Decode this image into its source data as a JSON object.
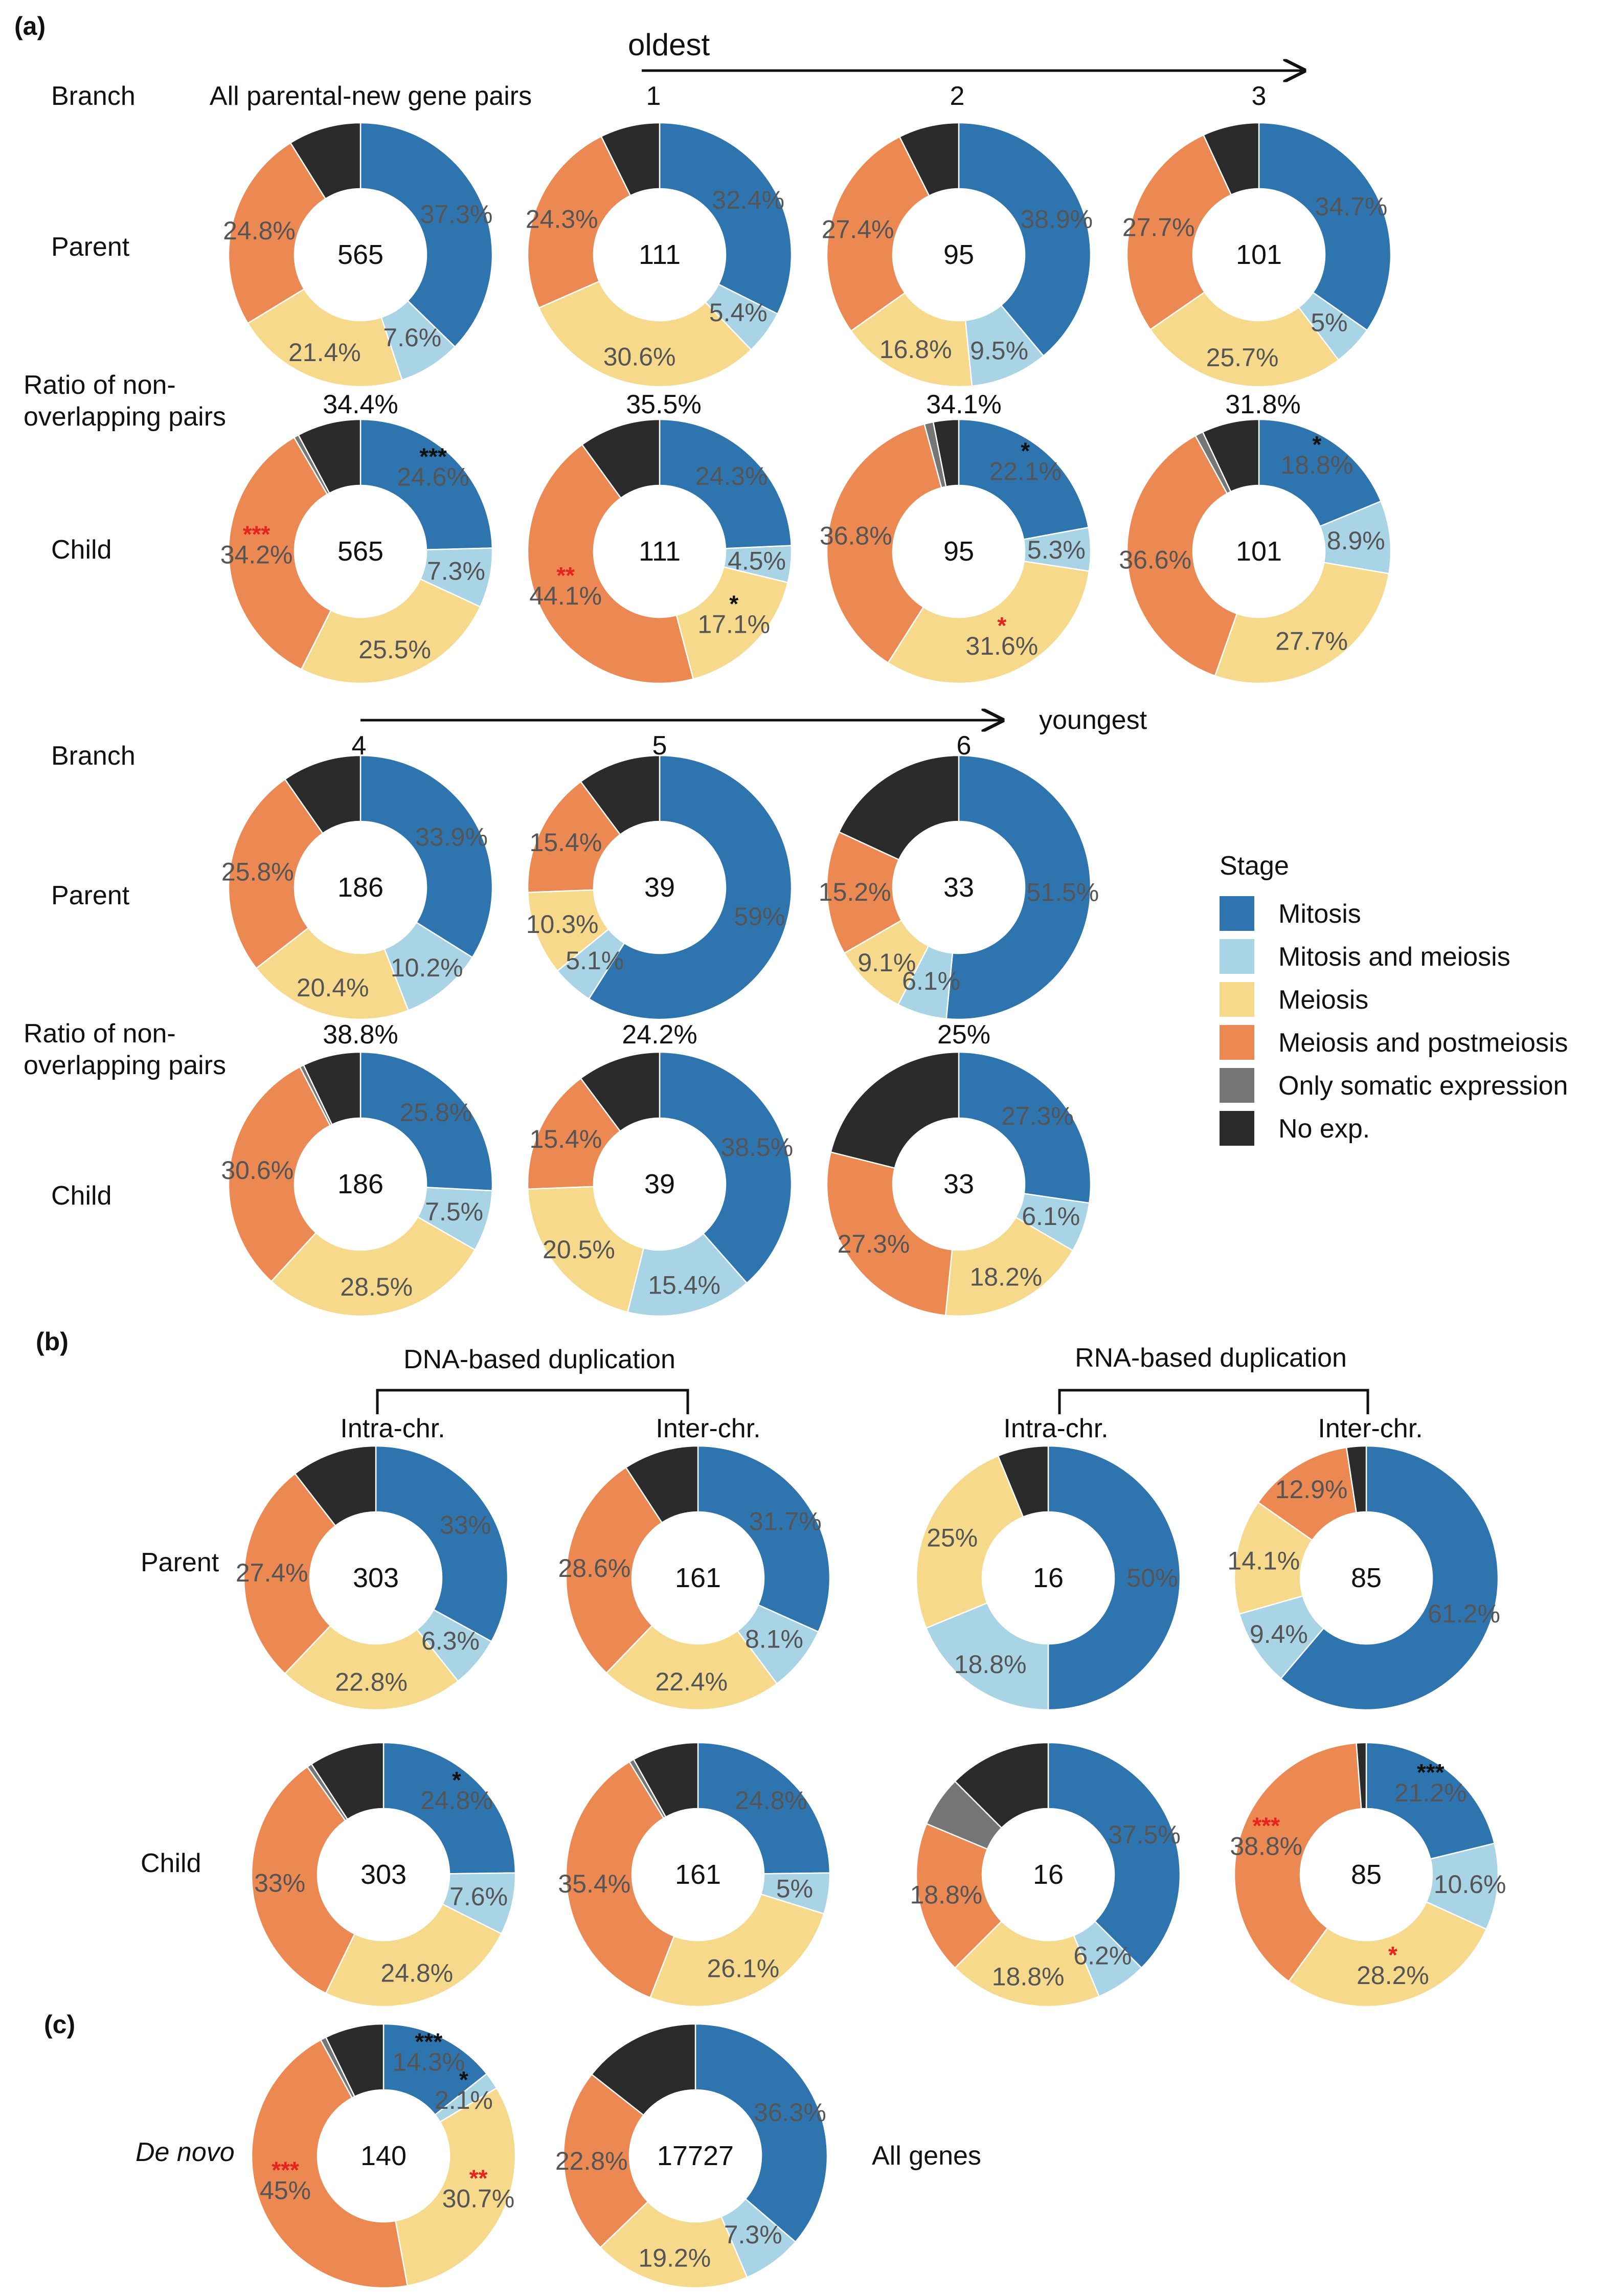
{
  "panels": {
    "a": "(a)",
    "b": "(b)",
    "c": "(c)"
  },
  "legend": {
    "title": "Stage",
    "items": [
      {
        "label": "Mitosis",
        "color": "#2e75b0"
      },
      {
        "label": "Mitosis and meiosis",
        "color": "#a9d4e5"
      },
      {
        "label": "Meiosis",
        "color": "#f7d98b"
      },
      {
        "label": "Meiosis and postmeiosis",
        "color": "#ec8953"
      },
      {
        "label": "Only somatic expression",
        "color": "#767676"
      },
      {
        "label": "No exp.",
        "color": "#2b2b2b"
      }
    ]
  },
  "labels": {
    "branch": "Branch",
    "parent": "Parent",
    "child": "Child",
    "ratio_line1": "Ratio of non-",
    "ratio_line2": "overlapping pairs",
    "all_pairs": "All parental-new gene pairs",
    "oldest": "oldest",
    "youngest": "youngest",
    "dna": "DNA-based duplication",
    "rna": "RNA-based duplication",
    "intra": "Intra-chr.",
    "inter": "Inter-chr.",
    "de_novo": "De novo",
    "all_genes": "All genes"
  },
  "branch_labels": [
    "1",
    "2",
    "3",
    "4",
    "5",
    "6"
  ],
  "ratios": [
    "34.4%",
    "35.5%",
    "34.1%",
    "31.8%",
    "38.8%",
    "24.2%",
    "25%"
  ],
  "chart_data": {
    "type": "pie",
    "variant": "donut",
    "categories": [
      "Mitosis",
      "Mitosis and meiosis",
      "Meiosis",
      "Meiosis and postmeiosis",
      "Only somatic expression",
      "No exp."
    ],
    "charts": [
      {
        "panel": "a",
        "group": "All parental-new gene pairs",
        "role": "Parent",
        "n": "565",
        "values": [
          37.3,
          7.6,
          21.4,
          24.8,
          0,
          8.9
        ],
        "labels": [
          "37.3%",
          "7.6%",
          "21.4%",
          "24.8%",
          null,
          null
        ],
        "stars": []
      },
      {
        "panel": "a",
        "group": "1",
        "role": "Parent",
        "n": "111",
        "values": [
          32.4,
          5.4,
          30.6,
          24.3,
          0,
          7.3
        ],
        "labels": [
          "32.4%",
          "5.4%",
          "30.6%",
          "24.3%",
          null,
          null
        ],
        "stars": []
      },
      {
        "panel": "a",
        "group": "2",
        "role": "Parent",
        "n": "95",
        "values": [
          38.9,
          9.5,
          16.8,
          27.4,
          0,
          7.4
        ],
        "labels": [
          "38.9%",
          "9.5%",
          "16.8%",
          "27.4%",
          null,
          null
        ],
        "stars": []
      },
      {
        "panel": "a",
        "group": "3",
        "role": "Parent",
        "n": "101",
        "values": [
          34.7,
          5,
          25.7,
          27.7,
          0,
          6.9
        ],
        "labels": [
          "34.7%",
          "5%",
          "25.7%",
          "27.7%",
          null,
          null
        ],
        "stars": []
      },
      {
        "panel": "a",
        "group": "All parental-new gene pairs",
        "role": "Child",
        "n": "565",
        "values": [
          24.6,
          7.3,
          25.5,
          34.2,
          0.6,
          7.8
        ],
        "labels": [
          "24.6%",
          "7.3%",
          "25.5%",
          "34.2%",
          null,
          null
        ],
        "stars": [
          {
            "seg": 0,
            "text": "***",
            "color": "#111111"
          },
          {
            "seg": 3,
            "text": "***",
            "color": "#e8231f"
          }
        ]
      },
      {
        "panel": "a",
        "group": "1",
        "role": "Child",
        "n": "111",
        "values": [
          24.3,
          4.5,
          17.1,
          44.1,
          0,
          10
        ],
        "labels": [
          "24.3%",
          "4.5%",
          "17.1%",
          "44.1%",
          null,
          null
        ],
        "stars": [
          {
            "seg": 2,
            "text": "*",
            "color": "#111111"
          },
          {
            "seg": 3,
            "text": "**",
            "color": "#e8231f"
          }
        ]
      },
      {
        "panel": "a",
        "group": "2",
        "role": "Child",
        "n": "95",
        "values": [
          22.1,
          5.3,
          31.6,
          36.8,
          1.1,
          3.1
        ],
        "labels": [
          "22.1%",
          "5.3%",
          "31.6%",
          "36.8%",
          null,
          null
        ],
        "stars": [
          {
            "seg": 0,
            "text": "*",
            "color": "#111111"
          },
          {
            "seg": 2,
            "text": "*",
            "color": "#e8231f"
          }
        ]
      },
      {
        "panel": "a",
        "group": "3",
        "role": "Child",
        "n": "101",
        "values": [
          18.8,
          8.9,
          27.7,
          36.6,
          1,
          7
        ],
        "labels": [
          "18.8%",
          "8.9%",
          "27.7%",
          "36.6%",
          null,
          null
        ],
        "stars": [
          {
            "seg": 0,
            "text": "*",
            "color": "#111111"
          }
        ]
      },
      {
        "panel": "a",
        "group": "4",
        "role": "Parent",
        "n": "186",
        "values": [
          33.9,
          10.2,
          20.4,
          25.8,
          0,
          9.7
        ],
        "labels": [
          "33.9%",
          "10.2%",
          "20.4%",
          "25.8%",
          null,
          null
        ],
        "stars": []
      },
      {
        "panel": "a",
        "group": "5",
        "role": "Parent",
        "n": "39",
        "values": [
          59,
          5.1,
          10.3,
          15.4,
          0,
          10.2
        ],
        "labels": [
          "59%",
          "5.1%",
          "10.3%",
          "15.4%",
          null,
          null
        ],
        "stars": []
      },
      {
        "panel": "a",
        "group": "6",
        "role": "Parent",
        "n": "33",
        "values": [
          51.5,
          6.1,
          9.1,
          15.2,
          0,
          18.1
        ],
        "labels": [
          "51.5%",
          "6.1%",
          "9.1%",
          "15.2%",
          null,
          null
        ],
        "stars": []
      },
      {
        "panel": "a",
        "group": "4",
        "role": "Child",
        "n": "186",
        "values": [
          25.8,
          7.5,
          28.5,
          30.6,
          0.5,
          7.1
        ],
        "labels": [
          "25.8%",
          "7.5%",
          "28.5%",
          "30.6%",
          null,
          null
        ],
        "stars": []
      },
      {
        "panel": "a",
        "group": "5",
        "role": "Child",
        "n": "39",
        "values": [
          38.5,
          15.4,
          20.5,
          15.4,
          0,
          10.2
        ],
        "labels": [
          "38.5%",
          "15.4%",
          "20.5%",
          "15.4%",
          null,
          null
        ],
        "stars": []
      },
      {
        "panel": "a",
        "group": "6",
        "role": "Child",
        "n": "33",
        "values": [
          27.3,
          6.1,
          18.2,
          27.3,
          0,
          21.1
        ],
        "labels": [
          "27.3%",
          "6.1%",
          "18.2%",
          "27.3%",
          null,
          null
        ],
        "stars": []
      },
      {
        "panel": "b",
        "group": "DNA-based duplication / Intra-chr.",
        "role": "Parent",
        "n": "303",
        "values": [
          33,
          6.3,
          22.8,
          27.4,
          0,
          10.5
        ],
        "labels": [
          "33%",
          "6.3%",
          "22.8%",
          "27.4%",
          null,
          null
        ],
        "stars": []
      },
      {
        "panel": "b",
        "group": "DNA-based duplication / Inter-chr.",
        "role": "Parent",
        "n": "161",
        "values": [
          31.7,
          8.1,
          22.4,
          28.6,
          0,
          9.2
        ],
        "labels": [
          "31.7%",
          "8.1%",
          "22.4%",
          "28.6%",
          null,
          null
        ],
        "stars": []
      },
      {
        "panel": "b",
        "group": "RNA-based duplication / Intra-chr.",
        "role": "Parent",
        "n": "16",
        "values": [
          50,
          18.8,
          25,
          0,
          0,
          6.2
        ],
        "labels": [
          "50%",
          "18.8%",
          "25%",
          null,
          null,
          null
        ],
        "stars": []
      },
      {
        "panel": "b",
        "group": "RNA-based duplication / Inter-chr.",
        "role": "Parent",
        "n": "85",
        "values": [
          61.2,
          9.4,
          14.1,
          12.9,
          0,
          2.4
        ],
        "labels": [
          "61.2%",
          "9.4%",
          "14.1%",
          "12.9%",
          null,
          null
        ],
        "stars": []
      },
      {
        "panel": "b",
        "group": "DNA-based duplication / Intra-chr.",
        "role": "Child",
        "n": "303",
        "values": [
          24.8,
          7.6,
          24.8,
          33,
          0.6,
          9.2
        ],
        "labels": [
          "24.8%",
          "7.6%",
          "24.8%",
          "33%",
          null,
          null
        ],
        "stars": [
          {
            "seg": 0,
            "text": "*",
            "color": "#111111"
          }
        ]
      },
      {
        "panel": "b",
        "group": "DNA-based duplication / Inter-chr.",
        "role": "Child",
        "n": "161",
        "values": [
          24.8,
          5,
          26.1,
          35.4,
          0.6,
          8.1
        ],
        "labels": [
          "24.8%",
          "5%",
          "26.1%",
          "35.4%",
          null,
          null
        ],
        "stars": []
      },
      {
        "panel": "b",
        "group": "RNA-based duplication / Intra-chr.",
        "role": "Child",
        "n": "16",
        "values": [
          37.5,
          6.2,
          18.8,
          18.8,
          6.2,
          12.5
        ],
        "labels": [
          "37.5%",
          "6.2%",
          "18.8%",
          "18.8%",
          null,
          null
        ],
        "stars": []
      },
      {
        "panel": "b",
        "group": "RNA-based duplication / Inter-chr.",
        "role": "Child",
        "n": "85",
        "values": [
          21.2,
          10.6,
          28.2,
          38.8,
          0,
          1.2
        ],
        "labels": [
          "21.2%",
          "10.6%",
          "28.2%",
          "38.8%",
          null,
          null
        ],
        "stars": [
          {
            "seg": 0,
            "text": "***",
            "color": "#111111"
          },
          {
            "seg": 2,
            "text": "*",
            "color": "#e8231f"
          },
          {
            "seg": 3,
            "text": "***",
            "color": "#e8231f"
          }
        ]
      },
      {
        "panel": "c",
        "group": "De novo",
        "role": "",
        "n": "140",
        "values": [
          14.3,
          2.1,
          30.7,
          45,
          0.7,
          7.2
        ],
        "labels": [
          "14.3%",
          "2.1%",
          "30.7%",
          "45%",
          null,
          null
        ],
        "stars": [
          {
            "seg": 0,
            "text": "***",
            "color": "#111111"
          },
          {
            "seg": 1,
            "text": "*",
            "color": "#111111"
          },
          {
            "seg": 2,
            "text": "**",
            "color": "#e8231f"
          },
          {
            "seg": 3,
            "text": "***",
            "color": "#e8231f"
          }
        ]
      },
      {
        "panel": "c",
        "group": "All genes",
        "role": "",
        "n": "17727",
        "values": [
          36.3,
          7.3,
          19.2,
          22.8,
          0,
          14.4
        ],
        "labels": [
          "36.3%",
          "7.3%",
          "19.2%",
          "22.8%",
          null,
          null
        ],
        "stars": []
      }
    ]
  }
}
